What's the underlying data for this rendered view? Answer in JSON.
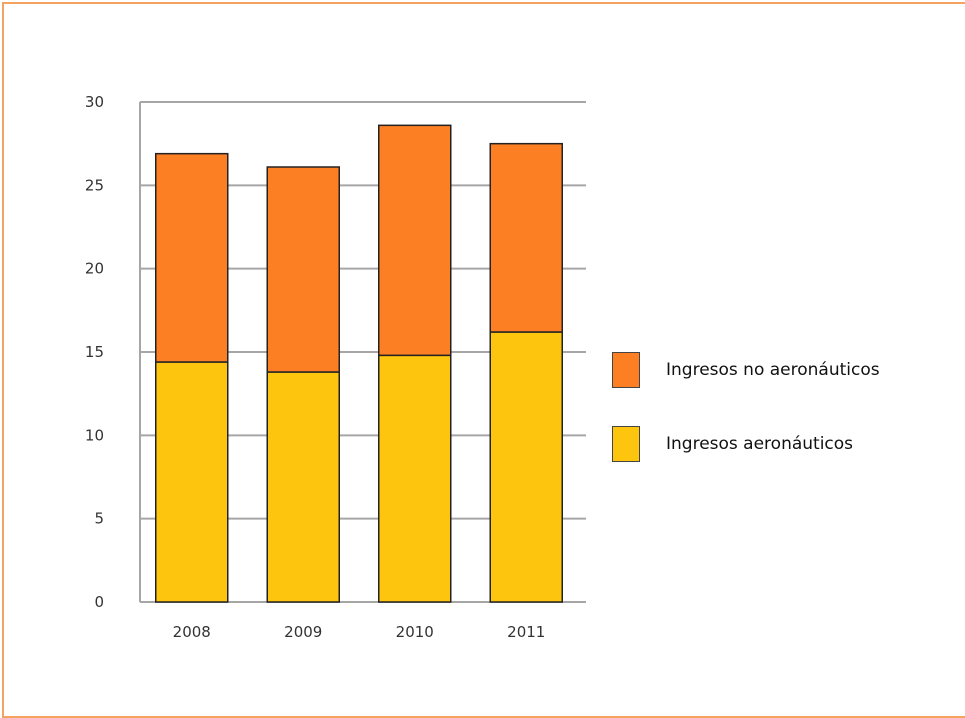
{
  "chart_data": {
    "type": "bar",
    "stacked": true,
    "title": "",
    "xlabel": "",
    "ylabel": "",
    "categories": [
      "2008",
      "2009",
      "2010",
      "2011"
    ],
    "series": [
      {
        "name": "Ingresos aeronáuticos",
        "values": [
          14.4,
          13.8,
          14.8,
          16.2
        ],
        "color": "#fec50e"
      },
      {
        "name": "Ingresos no aeronáuticos",
        "values": [
          12.5,
          12.3,
          13.8,
          11.3
        ],
        "color": "#fd7f23"
      }
    ],
    "ylim": [
      0,
      30
    ],
    "yticks": [
      0,
      5,
      10,
      15,
      20,
      25,
      30
    ],
    "grid": true,
    "legend_position": "right"
  },
  "legend": {
    "items": [
      {
        "label": "Ingresos no aeronáuticos",
        "color": "#fd7f23"
      },
      {
        "label": "Ingresos aeronáuticos",
        "color": "#fec50e"
      }
    ]
  },
  "colors": {
    "frame_border": "#f4a460",
    "gridline": "#a6a6a6",
    "bar_outline": "#222222"
  }
}
